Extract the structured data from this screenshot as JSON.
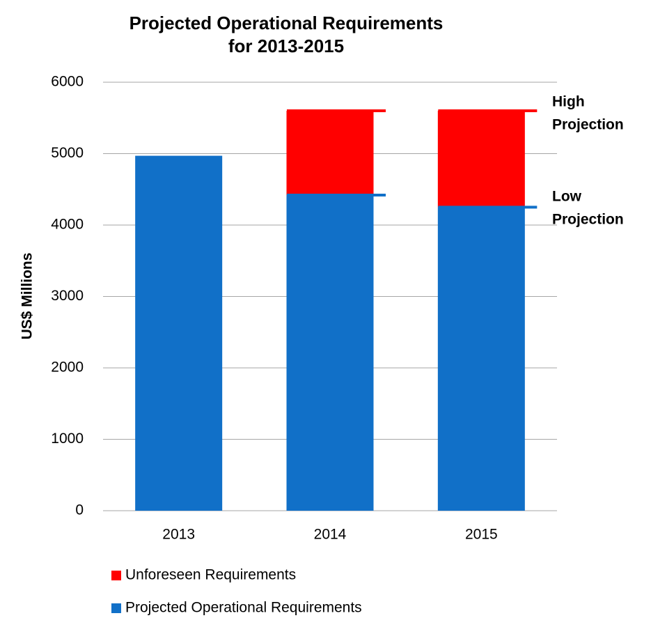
{
  "chart_data": {
    "type": "stacked_bar",
    "title": [
      "Projected Operational Requirements",
      "for 2013-2015"
    ],
    "y_label": "US$ Millions",
    "categories": [
      "2013",
      "2014",
      "2015"
    ],
    "series": [
      {
        "name": "Projected Operational Requirements",
        "color": "#1170c8",
        "values": [
          4970,
          4420,
          4250
        ]
      },
      {
        "name": "Unforeseen Requirements",
        "color": "#ff0000",
        "values": [
          0,
          1180,
          1350
        ]
      }
    ],
    "ylim": [
      0,
      6000
    ],
    "yticks": [
      0,
      1000,
      2000,
      3000,
      4000,
      5000,
      6000
    ],
    "grid": true,
    "annotations": [
      [
        "High",
        "Projection"
      ],
      [
        "Low",
        "Projection"
      ]
    ]
  }
}
